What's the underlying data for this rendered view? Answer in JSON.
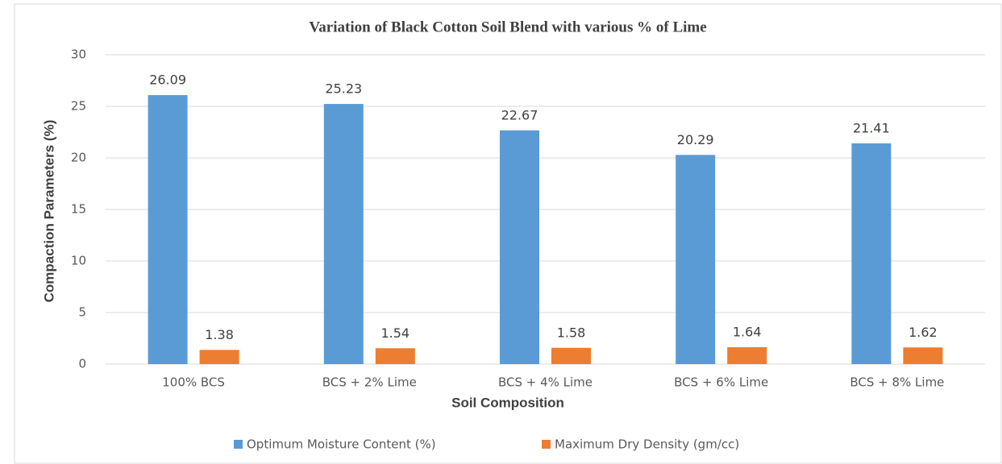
{
  "chart_data": {
    "type": "bar",
    "title": "Variation of Black Cotton Soil Blend with various % of Lime",
    "x_label": "Soil Composition",
    "y_label": "Compaction Parameters (%)",
    "categories": [
      "100% BCS",
      "BCS + 2% Lime",
      "BCS + 4% Lime",
      "BCS + 6% Lime",
      "BCS + 8% Lime"
    ],
    "series": [
      {
        "name": "Optimum Moisture Content (%)",
        "color": "#5b9bd5",
        "values": [
          26.09,
          25.23,
          22.67,
          20.29,
          21.41
        ]
      },
      {
        "name": "Maximum Dry Density (gm/cc)",
        "color": "#ed7d31",
        "values": [
          1.38,
          1.54,
          1.58,
          1.64,
          1.62
        ]
      }
    ],
    "ylim": [
      0,
      30
    ],
    "yticks": [
      0,
      5,
      10,
      15,
      20,
      25,
      30
    ],
    "grid": true,
    "legend": "bottom"
  }
}
